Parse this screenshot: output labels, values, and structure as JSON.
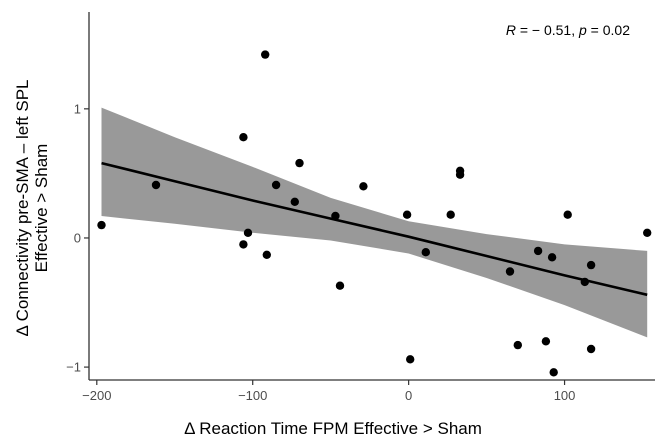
{
  "chart_data": {
    "type": "scatter",
    "title": "",
    "xlabel": "Δ Reaction Time FPM Effective > Sham",
    "ylabel_lines": [
      "Δ Connectivity pre-SMA – left SPL",
      "Effective > Sham"
    ],
    "xlim": [
      -205,
      158
    ],
    "ylim": [
      -1.1,
      1.75
    ],
    "x_ticks": [
      -200,
      -100,
      0,
      100
    ],
    "x_tick_labels": [
      "−200",
      "−100",
      "0",
      "100"
    ],
    "y_ticks": [
      -1,
      0,
      1
    ],
    "y_tick_labels": [
      "−1",
      "0",
      "1"
    ],
    "grid": false,
    "annotation": {
      "r_symbol": "R",
      "r_text": " = − 0.51, ",
      "p_symbol": "p",
      "p_text": " = 0.02"
    },
    "points": [
      {
        "x": -197,
        "y": 0.1
      },
      {
        "x": -162,
        "y": 0.41
      },
      {
        "x": -106,
        "y": 0.78
      },
      {
        "x": -106,
        "y": -0.05
      },
      {
        "x": -103,
        "y": 0.04
      },
      {
        "x": -92,
        "y": 1.42
      },
      {
        "x": -91,
        "y": -0.13
      },
      {
        "x": -85,
        "y": 0.41
      },
      {
        "x": -73,
        "y": 0.28
      },
      {
        "x": -70,
        "y": 0.58
      },
      {
        "x": -47,
        "y": 0.17
      },
      {
        "x": -44,
        "y": -0.37
      },
      {
        "x": -29,
        "y": 0.4
      },
      {
        "x": -1,
        "y": 0.18
      },
      {
        "x": 1,
        "y": -0.94
      },
      {
        "x": 11,
        "y": -0.11
      },
      {
        "x": 27,
        "y": 0.18
      },
      {
        "x": 33,
        "y": 0.52
      },
      {
        "x": 33,
        "y": 0.49
      },
      {
        "x": 65,
        "y": -0.26
      },
      {
        "x": 70,
        "y": -0.83
      },
      {
        "x": 83,
        "y": -0.1
      },
      {
        "x": 88,
        "y": -0.8
      },
      {
        "x": 92,
        "y": -0.15
      },
      {
        "x": 93,
        "y": -1.04
      },
      {
        "x": 102,
        "y": 0.18
      },
      {
        "x": 113,
        "y": -0.34
      },
      {
        "x": 117,
        "y": -0.21
      },
      {
        "x": 117,
        "y": -0.86
      },
      {
        "x": 153,
        "y": 0.04
      }
    ],
    "regression": {
      "x": [
        -197,
        -150,
        -100,
        -50,
        0,
        50,
        100,
        153
      ],
      "fit": [
        0.58,
        0.44,
        0.29,
        0.15,
        0.01,
        -0.14,
        -0.29,
        -0.44
      ],
      "lower": [
        0.17,
        0.11,
        0.04,
        -0.02,
        -0.12,
        -0.31,
        -0.52,
        -0.77
      ],
      "upper": [
        1.01,
        0.78,
        0.55,
        0.31,
        0.13,
        0.03,
        -0.05,
        -0.1
      ]
    },
    "colors": {
      "point": "#000000",
      "line": "#000000",
      "band": "#999999",
      "axis": "#333333",
      "tick_label": "#4d4d4d"
    }
  }
}
